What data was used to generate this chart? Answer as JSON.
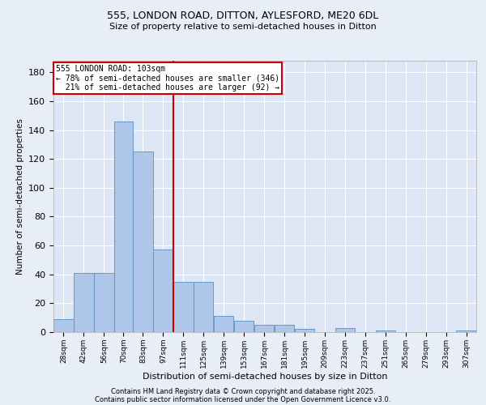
{
  "title_line1": "555, LONDON ROAD, DITTON, AYLESFORD, ME20 6DL",
  "title_line2": "Size of property relative to semi-detached houses in Ditton",
  "xlabel": "Distribution of semi-detached houses by size in Ditton",
  "ylabel": "Number of semi-detached properties",
  "footnote1": "Contains HM Land Registry data © Crown copyright and database right 2025.",
  "footnote2": "Contains public sector information licensed under the Open Government Licence v3.0.",
  "annotation_title": "555 LONDON ROAD: 103sqm",
  "annotation_line2": "← 78% of semi-detached houses are smaller (346)",
  "annotation_line3": "  21% of semi-detached houses are larger (92) →",
  "bar_labels": [
    "28sqm",
    "42sqm",
    "56sqm",
    "70sqm",
    "83sqm",
    "97sqm",
    "111sqm",
    "125sqm",
    "139sqm",
    "153sqm",
    "167sqm",
    "181sqm",
    "195sqm",
    "209sqm",
    "223sqm",
    "237sqm",
    "251sqm",
    "265sqm",
    "279sqm",
    "293sqm",
    "307sqm"
  ],
  "bar_values": [
    9,
    41,
    41,
    146,
    125,
    57,
    35,
    35,
    11,
    8,
    5,
    5,
    2,
    0,
    3,
    0,
    1,
    0,
    0,
    0,
    1
  ],
  "bar_edges": [
    21,
    35,
    49,
    63,
    76,
    90,
    104,
    118,
    132,
    146,
    160,
    174,
    188,
    202,
    216,
    230,
    244,
    258,
    272,
    286,
    300,
    314
  ],
  "bar_color": "#aec6e8",
  "bar_edge_color": "#5a8fc2",
  "vline_x": 104,
  "vline_color": "#cc0000",
  "ylim": [
    0,
    188
  ],
  "yticks": [
    0,
    20,
    40,
    60,
    80,
    100,
    120,
    140,
    160,
    180
  ],
  "bg_color": "#e8eef7",
  "plot_bg_color": "#dce6f5",
  "grid_color": "#ffffff",
  "annotation_box_color": "#cc0000",
  "title1_fontsize": 9,
  "title2_fontsize": 8,
  "ylabel_fontsize": 7.5,
  "xlabel_fontsize": 8,
  "ytick_fontsize": 8,
  "xtick_fontsize": 6.5,
  "annot_fontsize": 7,
  "footnote_fontsize": 6
}
